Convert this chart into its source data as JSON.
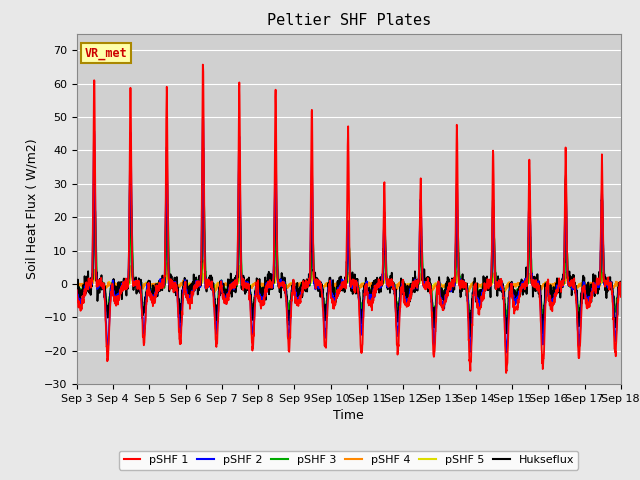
{
  "title": "Peltier SHF Plates",
  "xlabel": "Time",
  "ylabel": "Soil Heat Flux ( W/m2)",
  "ylim": [
    -30,
    75
  ],
  "xlim": [
    0,
    15
  ],
  "x_tick_labels": [
    "Sep 3",
    "Sep 4",
    "Sep 5",
    "Sep 6",
    "Sep 7",
    "Sep 8",
    "Sep 9",
    "Sep 10",
    "Sep 11",
    "Sep 12",
    "Sep 13",
    "Sep 14",
    "Sep 15",
    "Sep 16",
    "Sep 17",
    "Sep 18"
  ],
  "background_color": "#e8e8e8",
  "plot_bg_color": "#d0d0d0",
  "colors": {
    "pSHF1": "#ff0000",
    "pSHF2": "#0000ff",
    "pSHF3": "#00aa00",
    "pSHF4": "#ff8800",
    "pSHF5": "#dddd00",
    "Hukseflux": "#000000"
  },
  "legend_labels": [
    "pSHF 1",
    "pSHF 2",
    "pSHF 3",
    "pSHF 4",
    "pSHF 5",
    "Hukseflux"
  ],
  "annotation_text": "VR_met",
  "annotation_color": "#cc0000",
  "annotation_bg": "#ffffaa",
  "annotation_border": "#aa8800",
  "peaks1": [
    62,
    59,
    59,
    67,
    60,
    58,
    53,
    47,
    30,
    31,
    47,
    40,
    38,
    39,
    37
  ],
  "peaks2": [
    46,
    45,
    40,
    51,
    44,
    41,
    35,
    19,
    20,
    25,
    30,
    24,
    27,
    28,
    27
  ],
  "peaks3": [
    22,
    23,
    24,
    26,
    20,
    19,
    15,
    12,
    13,
    14,
    16,
    14,
    14,
    13,
    12
  ],
  "peaks4": [
    4,
    5,
    6,
    7,
    5,
    5,
    4,
    3,
    3,
    3,
    4,
    3,
    3,
    3,
    3
  ],
  "peaks5": [
    3,
    3,
    3,
    3,
    3,
    3,
    2,
    2,
    2,
    2,
    2,
    2,
    2,
    2,
    2
  ],
  "peaks_huk": [
    35,
    38,
    35,
    40,
    37,
    35,
    18,
    17,
    20,
    22,
    25,
    25,
    28,
    30,
    27
  ],
  "troughs1": [
    -23,
    -18,
    -18,
    -18,
    -19,
    -20,
    -20,
    -21,
    -20,
    -22,
    -25,
    -26,
    -25,
    -22,
    -21
  ],
  "troughs2": [
    -19,
    -15,
    -15,
    -15,
    -15,
    -16,
    -16,
    -15,
    -15,
    -18,
    -20,
    -20,
    -18,
    -18,
    -17
  ],
  "troughs3": [
    -8,
    -8,
    -8,
    -8,
    -8,
    -8,
    -8,
    -8,
    -8,
    -9,
    -10,
    -10,
    -9,
    -9,
    -8
  ],
  "troughs4": [
    -1,
    -1,
    -1,
    -2,
    -1,
    -1,
    -1,
    -1,
    -1,
    -2,
    -2,
    -2,
    -1,
    -1,
    -1
  ],
  "troughs5": [
    -1,
    -1,
    -1,
    -1,
    -1,
    -1,
    -1,
    -1,
    -1,
    -1,
    -2,
    -2,
    -1,
    -1,
    -1
  ],
  "troughs_huk": [
    -9,
    -9,
    -9,
    -9,
    -9,
    -10,
    -10,
    -10,
    -10,
    -11,
    -12,
    -13,
    -12,
    -12,
    -12
  ]
}
